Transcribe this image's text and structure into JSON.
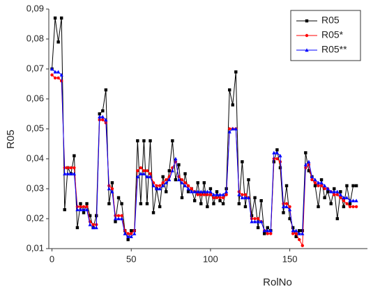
{
  "chart_data": {
    "type": "line",
    "xlabel": "RolNo",
    "ylabel": "R05",
    "xlim": [
      -2,
      199
    ],
    "ylim": [
      0.01,
      0.09
    ],
    "xticks": [
      0,
      50,
      100,
      150
    ],
    "yticks": [
      {
        "value": 0.01,
        "label": "0,01"
      },
      {
        "value": 0.02,
        "label": "0,02"
      },
      {
        "value": 0.03,
        "label": "0,03"
      },
      {
        "value": 0.04,
        "label": "0,04"
      },
      {
        "value": 0.05,
        "label": "0,05"
      },
      {
        "value": 0.06,
        "label": "0,06"
      },
      {
        "value": 0.07,
        "label": "0,07"
      },
      {
        "value": 0.08,
        "label": "0,08"
      },
      {
        "value": 0.09,
        "label": "0,09"
      }
    ],
    "legend": "top-right",
    "x": [
      0,
      2,
      4,
      6,
      8,
      10,
      12,
      14,
      16,
      18,
      20,
      22,
      24,
      26,
      28,
      30,
      32,
      34,
      36,
      38,
      40,
      42,
      44,
      46,
      48,
      50,
      52,
      54,
      56,
      58,
      60,
      62,
      64,
      66,
      68,
      70,
      72,
      74,
      76,
      78,
      80,
      82,
      84,
      86,
      88,
      90,
      92,
      94,
      96,
      98,
      100,
      102,
      104,
      106,
      108,
      110,
      112,
      114,
      116,
      118,
      120,
      122,
      124,
      126,
      128,
      130,
      132,
      134,
      136,
      138,
      140,
      142,
      144,
      146,
      148,
      150,
      152,
      154,
      156,
      158,
      160,
      162,
      164,
      166,
      168,
      170,
      172,
      174,
      176,
      178,
      180,
      182,
      184,
      186,
      188,
      190,
      192
    ],
    "series": [
      {
        "name": "R05",
        "color": "#000000",
        "marker": "square",
        "values": [
          0.07,
          0.087,
          0.079,
          0.087,
          0.023,
          0.037,
          0.035,
          0.041,
          0.017,
          0.025,
          0.022,
          0.025,
          0.021,
          0.017,
          0.021,
          0.055,
          0.056,
          0.063,
          0.025,
          0.032,
          0.019,
          0.027,
          0.025,
          0.016,
          0.013,
          0.016,
          0.016,
          0.046,
          0.025,
          0.046,
          0.025,
          0.046,
          0.022,
          0.03,
          0.024,
          0.034,
          0.029,
          0.036,
          0.046,
          0.033,
          0.038,
          0.027,
          0.035,
          0.029,
          0.03,
          0.026,
          0.032,
          0.025,
          0.032,
          0.024,
          0.03,
          0.025,
          0.029,
          0.026,
          0.025,
          0.03,
          0.063,
          0.058,
          0.069,
          0.025,
          0.039,
          0.024,
          0.033,
          0.021,
          0.027,
          0.017,
          0.026,
          0.015,
          0.017,
          0.016,
          0.039,
          0.043,
          0.037,
          0.022,
          0.031,
          0.02,
          0.017,
          0.014,
          0.016,
          0.016,
          0.042,
          0.036,
          0.034,
          0.031,
          0.024,
          0.033,
          0.027,
          0.029,
          0.025,
          0.03,
          0.02,
          0.029,
          0.024,
          0.031,
          0.025,
          0.031,
          0.031
        ]
      },
      {
        "name": "R05*",
        "color": "#ff0000",
        "marker": "circle",
        "values": [
          0.068,
          0.067,
          0.067,
          0.066,
          0.037,
          0.037,
          0.037,
          0.037,
          0.024,
          0.024,
          0.024,
          0.024,
          0.019,
          0.018,
          0.018,
          0.053,
          0.053,
          0.052,
          0.031,
          0.03,
          0.021,
          0.021,
          0.021,
          0.016,
          0.015,
          0.015,
          0.016,
          0.036,
          0.037,
          0.036,
          0.036,
          0.035,
          0.032,
          0.031,
          0.031,
          0.032,
          0.033,
          0.034,
          0.037,
          0.039,
          0.034,
          0.033,
          0.032,
          0.031,
          0.03,
          0.029,
          0.028,
          0.028,
          0.028,
          0.028,
          0.028,
          0.027,
          0.027,
          0.027,
          0.027,
          0.028,
          0.05,
          0.05,
          0.05,
          0.029,
          0.028,
          0.028,
          0.027,
          0.02,
          0.02,
          0.02,
          0.019,
          0.016,
          0.015,
          0.015,
          0.04,
          0.04,
          0.039,
          0.025,
          0.025,
          0.024,
          0.015,
          0.015,
          0.013,
          0.011,
          0.037,
          0.038,
          0.033,
          0.032,
          0.031,
          0.031,
          0.03,
          0.03,
          0.029,
          0.028,
          0.028,
          0.027,
          0.026,
          0.025,
          0.024,
          0.024,
          0.024
        ]
      },
      {
        "name": "R05**",
        "color": "#0000ff",
        "marker": "triangle",
        "values": [
          0.07,
          0.069,
          0.069,
          0.068,
          0.035,
          0.035,
          0.035,
          0.035,
          0.023,
          0.023,
          0.023,
          0.023,
          0.018,
          0.017,
          0.017,
          0.054,
          0.054,
          0.053,
          0.03,
          0.029,
          0.02,
          0.02,
          0.02,
          0.015,
          0.014,
          0.014,
          0.015,
          0.034,
          0.035,
          0.035,
          0.034,
          0.034,
          0.031,
          0.03,
          0.03,
          0.031,
          0.032,
          0.033,
          0.036,
          0.04,
          0.033,
          0.032,
          0.031,
          0.03,
          0.029,
          0.029,
          0.029,
          0.029,
          0.029,
          0.029,
          0.029,
          0.028,
          0.028,
          0.028,
          0.028,
          0.029,
          0.049,
          0.05,
          0.05,
          0.028,
          0.027,
          0.027,
          0.027,
          0.019,
          0.019,
          0.019,
          0.019,
          0.016,
          0.016,
          0.016,
          0.042,
          0.042,
          0.041,
          0.024,
          0.024,
          0.023,
          0.016,
          0.016,
          0.015,
          0.015,
          0.038,
          0.039,
          0.034,
          0.033,
          0.032,
          0.032,
          0.031,
          0.03,
          0.029,
          0.029,
          0.029,
          0.028,
          0.027,
          0.027,
          0.026,
          0.026,
          0.026
        ]
      }
    ]
  }
}
